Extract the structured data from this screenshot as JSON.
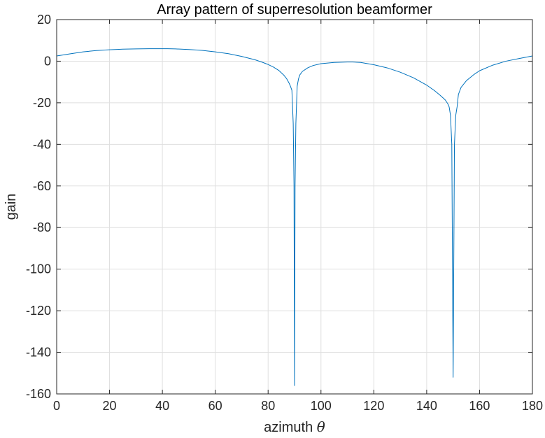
{
  "chart_data": {
    "type": "line",
    "title": "Array pattern of superresolution beamformer",
    "xlabel_text": "azimuth ",
    "xlabel_symbol": "θ",
    "ylabel": "gain",
    "xlim": [
      0,
      180
    ],
    "ylim": [
      -160,
      20
    ],
    "xticks": [
      0,
      20,
      40,
      60,
      80,
      100,
      120,
      140,
      160,
      180
    ],
    "yticks": [
      20,
      0,
      -20,
      -40,
      -60,
      -80,
      -100,
      -120,
      -140,
      -160
    ],
    "grid": true,
    "line_color": "#0072BD",
    "series": [
      {
        "x": [
          0,
          5,
          10,
          15,
          20,
          25,
          30,
          35,
          38,
          42,
          45,
          50,
          55,
          60,
          65,
          70,
          75,
          78,
          80,
          82,
          84,
          86,
          87,
          88,
          88.5,
          89,
          89.5,
          89.8,
          90,
          90.2,
          90.5,
          91,
          91.5,
          92,
          93,
          95,
          97,
          100,
          105,
          110,
          112,
          115,
          120,
          125,
          130,
          135,
          140,
          143,
          145,
          147,
          148,
          148.5,
          149,
          149.5,
          150,
          150.5,
          151,
          151.5,
          152,
          153,
          155,
          158,
          160,
          165,
          170,
          175,
          180
        ],
        "y": [
          2.5,
          3.5,
          4.5,
          5.1,
          5.5,
          5.8,
          5.9,
          6.0,
          6.0,
          6.0,
          5.9,
          5.6,
          5.2,
          4.5,
          3.6,
          2.3,
          0.7,
          -0.6,
          -1.6,
          -2.8,
          -4.4,
          -6.8,
          -8.4,
          -10.7,
          -12.2,
          -14.0,
          -30.0,
          -60.0,
          -156.0,
          -60.0,
          -30.0,
          -12.0,
          -8.5,
          -6.6,
          -4.9,
          -3.2,
          -2.1,
          -1.2,
          -0.6,
          -0.4,
          -0.4,
          -0.6,
          -1.7,
          -3.2,
          -5.3,
          -8.0,
          -11.5,
          -14.2,
          -16.3,
          -18.6,
          -20.5,
          -22.0,
          -26.0,
          -40.0,
          -152.0,
          -40.0,
          -26.0,
          -22.0,
          -16.0,
          -12.6,
          -9.4,
          -6.3,
          -4.6,
          -1.9,
          0.0,
          1.3,
          2.5
        ]
      }
    ]
  }
}
